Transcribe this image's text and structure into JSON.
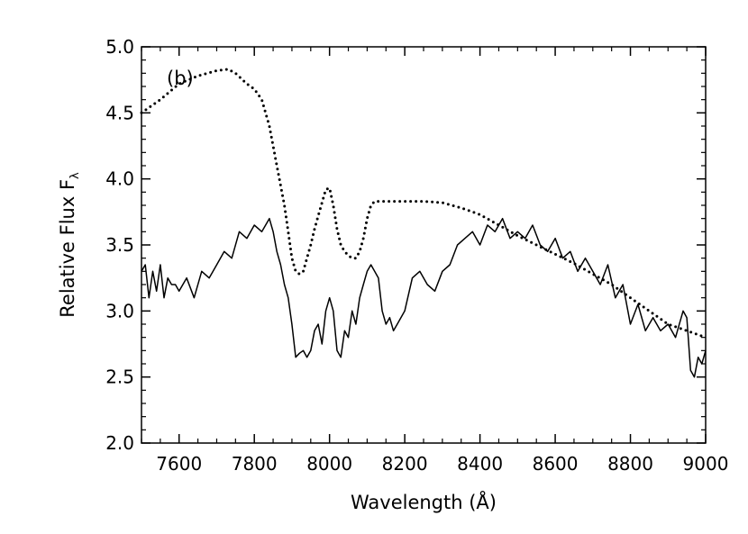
{
  "chart_data": {
    "type": "line",
    "panel_label": "(b)",
    "xlabel": "Wavelength (Å)",
    "ylabel": "Relative Flux F",
    "ylabel_subscript": "λ",
    "xlim": [
      7500,
      9000
    ],
    "ylim": [
      2.0,
      5.0
    ],
    "x_ticks": [
      7600,
      7800,
      8000,
      8200,
      8400,
      8600,
      8800,
      9000
    ],
    "x_tick_labels": [
      "7600",
      "7800",
      "8000",
      "8200",
      "8400",
      "8600",
      "8800",
      "9000"
    ],
    "y_ticks": [
      2.0,
      2.5,
      3.0,
      3.5,
      4.0,
      4.5,
      5.0
    ],
    "y_tick_labels": [
      "2.0",
      "2.5",
      "3.0",
      "3.5",
      "4.0",
      "4.5",
      "5.0"
    ],
    "grid": false,
    "series": [
      {
        "style": "solid",
        "x": [
          7500,
          7510,
          7520,
          7530,
          7540,
          7550,
          7560,
          7570,
          7580,
          7590,
          7600,
          7620,
          7640,
          7660,
          7680,
          7700,
          7720,
          7740,
          7760,
          7780,
          7800,
          7820,
          7840,
          7850,
          7860,
          7870,
          7880,
          7890,
          7900,
          7910,
          7920,
          7930,
          7940,
          7950,
          7960,
          7970,
          7980,
          7990,
          8000,
          8010,
          8020,
          8030,
          8040,
          8050,
          8060,
          8070,
          8080,
          8090,
          8100,
          8110,
          8120,
          8130,
          8140,
          8150,
          8160,
          8170,
          8180,
          8200,
          8220,
          8240,
          8260,
          8280,
          8300,
          8320,
          8340,
          8360,
          8380,
          8400,
          8420,
          8440,
          8460,
          8480,
          8500,
          8520,
          8540,
          8560,
          8580,
          8600,
          8620,
          8640,
          8660,
          8680,
          8700,
          8720,
          8740,
          8760,
          8780,
          8800,
          8820,
          8840,
          8860,
          8880,
          8900,
          8920,
          8940,
          8950,
          8960,
          8970,
          8980,
          8990,
          9000
        ],
        "y": [
          3.3,
          3.35,
          3.1,
          3.3,
          3.15,
          3.35,
          3.1,
          3.25,
          3.2,
          3.2,
          3.15,
          3.25,
          3.1,
          3.3,
          3.25,
          3.35,
          3.45,
          3.4,
          3.6,
          3.55,
          3.65,
          3.6,
          3.7,
          3.6,
          3.45,
          3.35,
          3.2,
          3.1,
          2.9,
          2.65,
          2.68,
          2.7,
          2.65,
          2.7,
          2.85,
          2.9,
          2.75,
          3.0,
          3.1,
          3.0,
          2.7,
          2.65,
          2.85,
          2.8,
          3.0,
          2.9,
          3.1,
          3.2,
          3.3,
          3.35,
          3.3,
          3.25,
          3.0,
          2.9,
          2.95,
          2.85,
          2.9,
          3.0,
          3.25,
          3.3,
          3.2,
          3.15,
          3.3,
          3.35,
          3.5,
          3.55,
          3.6,
          3.5,
          3.65,
          3.6,
          3.7,
          3.55,
          3.6,
          3.55,
          3.65,
          3.5,
          3.45,
          3.55,
          3.4,
          3.45,
          3.3,
          3.4,
          3.3,
          3.2,
          3.35,
          3.1,
          3.2,
          2.9,
          3.05,
          2.85,
          2.95,
          2.85,
          2.9,
          2.8,
          3.0,
          2.95,
          2.55,
          2.5,
          2.65,
          2.6,
          2.7
        ]
      },
      {
        "style": "dotted",
        "x": [
          7500,
          7550,
          7600,
          7650,
          7700,
          7730,
          7750,
          7780,
          7800,
          7820,
          7840,
          7860,
          7870,
          7880,
          7890,
          7900,
          7910,
          7920,
          7930,
          7940,
          7950,
          7960,
          7970,
          7980,
          7990,
          8000,
          8010,
          8020,
          8030,
          8040,
          8050,
          8060,
          8070,
          8080,
          8090,
          8100,
          8110,
          8120,
          8150,
          8200,
          8250,
          8300,
          8350,
          8400,
          8450,
          8500,
          8550,
          8600,
          8650,
          8700,
          8750,
          8800,
          8850,
          8900,
          8950,
          9000
        ],
        "y": [
          4.5,
          4.6,
          4.72,
          4.78,
          4.82,
          4.83,
          4.8,
          4.72,
          4.68,
          4.6,
          4.4,
          4.1,
          3.95,
          3.8,
          3.6,
          3.4,
          3.3,
          3.28,
          3.3,
          3.4,
          3.5,
          3.62,
          3.72,
          3.82,
          3.92,
          3.93,
          3.8,
          3.62,
          3.5,
          3.45,
          3.42,
          3.4,
          3.4,
          3.45,
          3.55,
          3.7,
          3.8,
          3.83,
          3.83,
          3.83,
          3.83,
          3.82,
          3.78,
          3.73,
          3.65,
          3.57,
          3.5,
          3.43,
          3.36,
          3.28,
          3.2,
          3.1,
          3.0,
          2.9,
          2.85,
          2.8
        ]
      }
    ]
  }
}
